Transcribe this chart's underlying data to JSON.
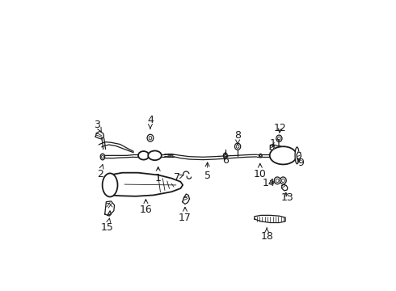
{
  "bg_color": "#ffffff",
  "line_color": "#1a1a1a",
  "font_size": 9,
  "arrow_lw": 0.7,
  "label_positions": {
    "1": [
      0.3,
      0.36,
      0.3,
      0.42
    ],
    "2": [
      0.04,
      0.38,
      0.055,
      0.43
    ],
    "3": [
      0.028,
      0.6,
      0.048,
      0.565
    ],
    "4": [
      0.265,
      0.62,
      0.265,
      0.575
    ],
    "5": [
      0.52,
      0.37,
      0.52,
      0.44
    ],
    "6": [
      0.6,
      0.44,
      0.6,
      0.475
    ],
    "7": [
      0.385,
      0.365,
      0.415,
      0.375
    ],
    "8": [
      0.655,
      0.55,
      0.655,
      0.505
    ],
    "9": [
      0.935,
      0.43,
      0.915,
      0.455
    ],
    "10": [
      0.755,
      0.38,
      0.755,
      0.435
    ],
    "11": [
      0.825,
      0.515,
      0.805,
      0.495
    ],
    "12": [
      0.845,
      0.585,
      0.84,
      0.555
    ],
    "13": [
      0.875,
      0.275,
      0.868,
      0.305
    ],
    "14": [
      0.795,
      0.34,
      0.828,
      0.345
    ],
    "15": [
      0.073,
      0.14,
      0.085,
      0.19
    ],
    "16": [
      0.245,
      0.22,
      0.245,
      0.275
    ],
    "17": [
      0.42,
      0.185,
      0.42,
      0.24
    ],
    "18": [
      0.785,
      0.1,
      0.785,
      0.145
    ]
  }
}
